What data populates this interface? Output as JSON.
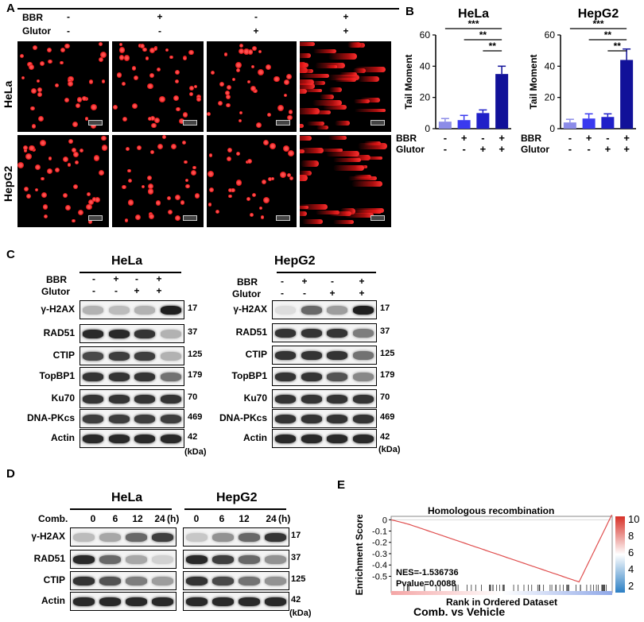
{
  "panelA": {
    "label": "A",
    "rows": [
      {
        "name": "BBR",
        "signs": [
          "-",
          "+",
          "-",
          "+"
        ]
      },
      {
        "name": "Glutor",
        "signs": [
          "-",
          "-",
          "+",
          "+"
        ]
      }
    ],
    "cell_lines": [
      "HeLa",
      "HepG2"
    ]
  },
  "panelB": {
    "label": "B",
    "charts": [
      {
        "title": "HeLa",
        "type": "bar",
        "ylabel": "Tail Moment",
        "ylim": [
          0,
          60
        ],
        "yticks": [
          0,
          20,
          40,
          60
        ],
        "values": [
          4.5,
          5.5,
          10,
          35
        ],
        "errors": [
          2,
          3,
          2,
          5
        ],
        "colors": [
          "#8c8ce8",
          "#3a3aef",
          "#2020c8",
          "#111199"
        ],
        "BBR": [
          "-",
          "+",
          "-",
          "+"
        ],
        "Glutor": [
          "-",
          "-",
          "+",
          "+"
        ],
        "sig": [
          "***",
          "**",
          "**"
        ]
      },
      {
        "title": "HepG2",
        "type": "bar",
        "ylabel": "Tail Moment",
        "ylim": [
          0,
          60
        ],
        "yticks": [
          0,
          20,
          40,
          60
        ],
        "values": [
          4,
          6.5,
          7.5,
          44
        ],
        "errors": [
          2,
          3,
          2,
          7
        ],
        "colors": [
          "#8c8ce8",
          "#3a3aef",
          "#2020c8",
          "#111199"
        ],
        "BBR": [
          "-",
          "+",
          "-",
          "+"
        ],
        "Glutor": [
          "-",
          "-",
          "+",
          "+"
        ],
        "sig": [
          "***",
          "**",
          "**"
        ]
      }
    ],
    "row_labels": [
      "BBR",
      "Glutor"
    ]
  },
  "panelC": {
    "label": "C",
    "left_title": "HeLa",
    "right_title": "HepG2",
    "treat_labels": [
      "BBR",
      "Glutor"
    ],
    "BBR": [
      "-",
      "+",
      "-",
      "+"
    ],
    "Glutor": [
      "-",
      "-",
      "+",
      "+"
    ],
    "proteins": [
      "γ-H2AX",
      "RAD51",
      "CTIP",
      "TopBP1",
      "Ku70",
      "DNA-PKcs",
      "Actin"
    ],
    "kda": [
      "17",
      "37",
      "125",
      "179",
      "70",
      "469",
      "42"
    ],
    "kda_unit": "(kDa)"
  },
  "panelD": {
    "label": "D",
    "left_title": "HeLa",
    "right_title": "HepG2",
    "comb_label": "Comb.",
    "times": [
      "0",
      "6",
      "12",
      "24"
    ],
    "time_unit": "(h)",
    "proteins": [
      "γ-H2AX",
      "RAD51",
      "CTIP",
      "Actin"
    ],
    "kda": [
      "17",
      "37",
      "125",
      "42"
    ],
    "kda_unit": "(kDa)"
  },
  "panelE": {
    "label": "E",
    "title": "Homologous recombination",
    "ylabel": "Enrichment Score",
    "yticks": [
      "0",
      "-0.1",
      "-0.2",
      "-0.3",
      "-0.4",
      "-0.5"
    ],
    "nes": "NES=-1.536736",
    "pvalue": "Pvalue=0.0088",
    "xlabel": "Rank in Ordered Dataset",
    "subtitle": "Comb. vs Vehicle",
    "colorbar_ticks": [
      "10",
      "8",
      "6",
      "4",
      "2"
    ]
  }
}
